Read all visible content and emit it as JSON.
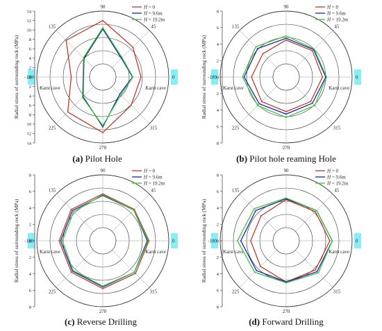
{
  "panel_letters": [
    "a",
    "b",
    "c",
    "d"
  ],
  "legend": {
    "prefix": "H",
    "labels": [
      " = 0",
      " = 9.6m",
      " = 19.2m"
    ]
  },
  "cave_label": "Karst cave",
  "colors": {
    "H0": "#c0392b",
    "H96": "#1a24a8",
    "H192": "#3bc43b",
    "cave": "#86eef7",
    "grid": "#333333",
    "spoke": "#9a9a9a"
  },
  "chart_data": [
    {
      "type": "polar-line",
      "caption": "Pilot Hole",
      "ylabel": "Radial stress of surrounding rock (MPa)",
      "rmax": 14,
      "tick_labels": [
        "0",
        "2",
        "4",
        "6",
        "8",
        "10",
        "12",
        "14"
      ],
      "angle_labels": [
        "0",
        "45",
        "90",
        "135",
        "-180",
        "225",
        "270",
        "315"
      ],
      "theta": [
        0,
        45,
        90,
        135,
        180,
        225,
        270,
        315
      ],
      "series": [
        {
          "name": "H = 0",
          "values": [
            8.1,
            9.0,
            12.0,
            11.0,
            6.7,
            10.5,
            11.8,
            8.5
          ]
        },
        {
          "name": "H = 9.6m",
          "values": [
            6.3,
            5.6,
            10.2,
            5.6,
            4.1,
            5.9,
            10.6,
            5.1
          ]
        },
        {
          "name": "H = 19.2m",
          "values": [
            6.4,
            5.8,
            10.5,
            5.8,
            4.2,
            6.1,
            10.3,
            5.4
          ]
        }
      ]
    },
    {
      "type": "polar-line",
      "caption": "Pilot hole reaming Hole",
      "ylabel": "Radial stress of surrounding rock (MPa)",
      "rmax": 8,
      "tick_labels": [
        "0",
        "2",
        "4",
        "6",
        "8"
      ],
      "angle_labels": [
        "0",
        "45",
        "90",
        "135",
        "-180",
        "225",
        "270",
        "315"
      ],
      "theta": [
        0,
        45,
        90,
        135,
        180,
        225,
        270,
        315
      ],
      "series": [
        {
          "name": "H = 0",
          "values": [
            4.4,
            4.5,
            4.5,
            4.0,
            4.2,
            4.2,
            4.2,
            4.2
          ]
        },
        {
          "name": "H = 9.6m",
          "values": [
            4.8,
            4.7,
            4.7,
            4.9,
            5.1,
            4.6,
            4.5,
            4.5
          ]
        },
        {
          "name": "H = 19.2m",
          "values": [
            4.9,
            4.8,
            5.0,
            5.2,
            5.3,
            4.9,
            4.9,
            4.9
          ]
        }
      ]
    },
    {
      "type": "polar-line",
      "caption": "Reverse Drilling",
      "ylabel": "Radial stress of surrounding rock (MPa)",
      "rmax": 8,
      "tick_labels": [
        "0",
        "2",
        "4",
        "6",
        "8"
      ],
      "angle_labels": [
        "0",
        "45",
        "90",
        "135",
        "-180",
        "225",
        "270",
        "315"
      ],
      "theta": [
        0,
        45,
        90,
        135,
        180,
        225,
        270,
        315
      ],
      "series": [
        {
          "name": "H = 0",
          "values": [
            5.6,
            5.4,
            5.7,
            5.4,
            5.3,
            5.4,
            5.8,
            5.6
          ]
        },
        {
          "name": "H = 9.6m",
          "values": [
            5.4,
            5.3,
            5.5,
            5.2,
            5.1,
            5.2,
            5.6,
            5.4
          ]
        },
        {
          "name": "H = 19.2m",
          "values": [
            5.5,
            5.3,
            5.6,
            5.0,
            4.9,
            5.1,
            5.5,
            5.4
          ]
        }
      ]
    },
    {
      "type": "polar-line",
      "caption": "Forward Drilling",
      "ylabel": "Radial stress of surrounding rock (MPa)",
      "rmax": 8,
      "tick_labels": [
        "0",
        "2",
        "4",
        "6",
        "8"
      ],
      "angle_labels": [
        "0",
        "45",
        "90",
        "135",
        "-180",
        "225",
        "270",
        "315"
      ],
      "theta": [
        0,
        45,
        90,
        135,
        180,
        225,
        270,
        315
      ],
      "series": [
        {
          "name": "H = 0",
          "values": [
            5.3,
            5.0,
            5.0,
            4.3,
            4.3,
            4.4,
            5.0,
            5.0
          ]
        },
        {
          "name": "H = 9.6m",
          "values": [
            5.6,
            5.2,
            5.1,
            5.2,
            5.5,
            5.1,
            5.0,
            5.3
          ]
        },
        {
          "name": "H = 19.2m",
          "values": [
            5.6,
            5.2,
            5.2,
            5.5,
            5.9,
            5.4,
            5.1,
            5.5
          ]
        }
      ]
    }
  ]
}
